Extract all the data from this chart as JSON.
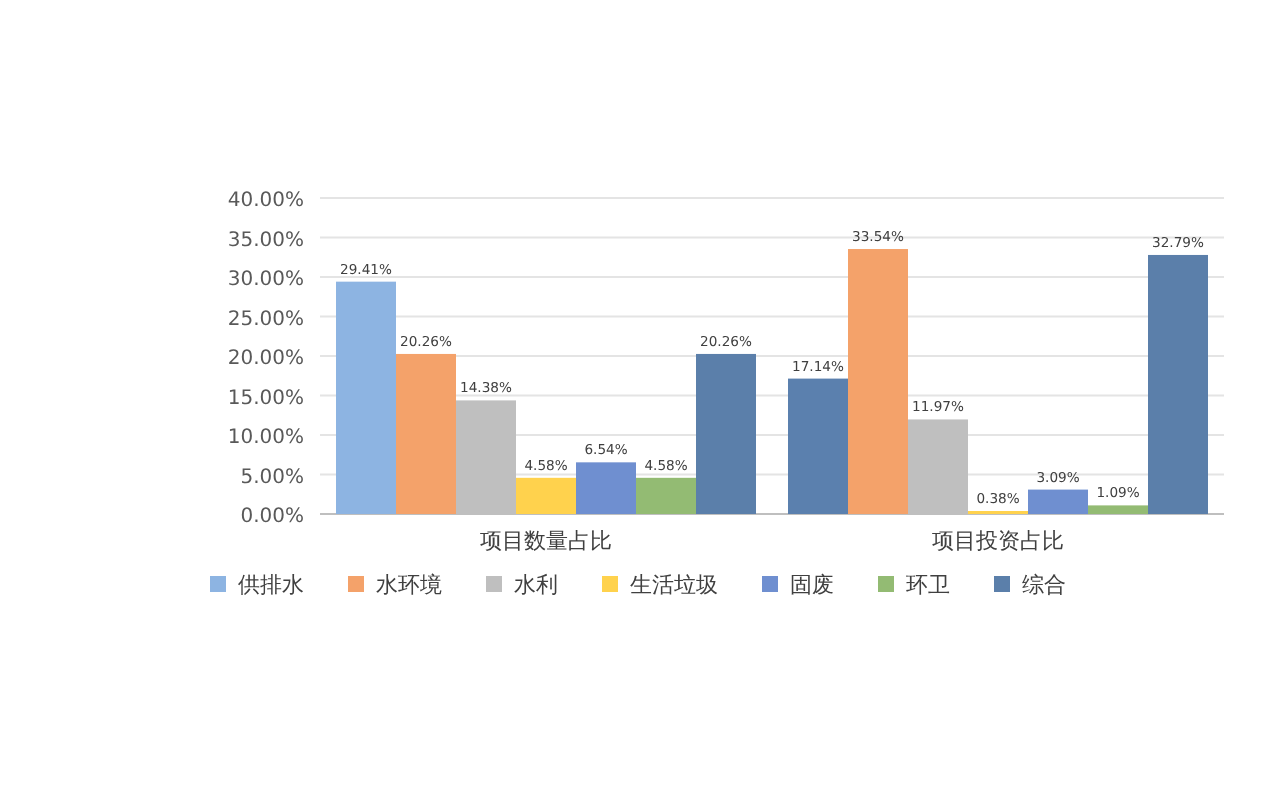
{
  "chart_data": {
    "type": "bar",
    "categories": [
      "项目数量占比",
      "项目投资占比"
    ],
    "series": [
      {
        "name": "供排水",
        "colors": [
          "#8db4e2",
          "#5b80ae"
        ],
        "values": [
          29.41,
          17.14
        ],
        "value_labels": [
          "29.41%",
          "17.14%"
        ]
      },
      {
        "name": "水环境",
        "color": "#f4a26a",
        "values": [
          20.26,
          33.54
        ],
        "value_labels": [
          "20.26%",
          "33.54%"
        ]
      },
      {
        "name": "水利",
        "color": "#bfbfbf",
        "values": [
          14.38,
          11.97
        ],
        "value_labels": [
          "14.38%",
          "11.97%"
        ]
      },
      {
        "name": "生活垃圾",
        "color": "#ffd24d",
        "values": [
          4.58,
          0.38
        ],
        "value_labels": [
          "4.58%",
          "0.38%"
        ]
      },
      {
        "name": "固废",
        "color": "#6f8fd0",
        "values": [
          6.54,
          3.09
        ],
        "value_labels": [
          "6.54%",
          "3.09%"
        ]
      },
      {
        "name": "环卫",
        "color": "#93bb73",
        "values": [
          4.58,
          1.09
        ],
        "value_labels": [
          "4.58%",
          "1.09%"
        ]
      },
      {
        "name": "综合",
        "color": "#5b7faa",
        "values": [
          20.26,
          32.79
        ],
        "value_labels": [
          "20.26%",
          "32.79%"
        ]
      }
    ],
    "ylim": [
      0,
      40
    ],
    "yticks": [
      {
        "value": 0,
        "label": "0.00%"
      },
      {
        "value": 5,
        "label": "5.00%"
      },
      {
        "value": 10,
        "label": "10.00%"
      },
      {
        "value": 15,
        "label": "15.00%"
      },
      {
        "value": 20,
        "label": "20.00%"
      },
      {
        "value": 25,
        "label": "25.00%"
      },
      {
        "value": 30,
        "label": "30.00%"
      },
      {
        "value": 35,
        "label": "35.00%"
      },
      {
        "value": 40,
        "label": "40.00%"
      }
    ],
    "grid": "y",
    "legend": "bottom"
  }
}
